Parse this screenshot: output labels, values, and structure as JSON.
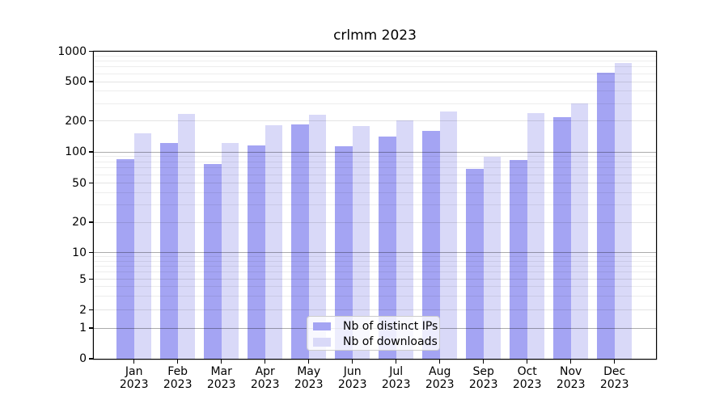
{
  "chart_data": {
    "type": "bar",
    "title": "crlmm 2023",
    "months": [
      "Jan",
      "Feb",
      "Mar",
      "Apr",
      "May",
      "Jun",
      "Jul",
      "Aug",
      "Sep",
      "Oct",
      "Nov",
      "Dec"
    ],
    "year": "2023",
    "categories": [
      "Jan 2023",
      "Feb 2023",
      "Mar 2023",
      "Apr 2023",
      "May 2023",
      "Jun 2023",
      "Jul 2023",
      "Aug 2023",
      "Sep 2023",
      "Oct 2023",
      "Nov 2023",
      "Dec 2023"
    ],
    "series": [
      {
        "name": "Nb of distinct IPs",
        "color": "#a4a4f3",
        "values": [
          85,
          121,
          77,
          115,
          186,
          114,
          140,
          159,
          68,
          84,
          217,
          610
        ]
      },
      {
        "name": "Nb of downloads",
        "color": "#d9d9f8",
        "values": [
          152,
          233,
          123,
          181,
          232,
          177,
          202,
          248,
          89,
          241,
          300,
          765
        ]
      }
    ],
    "xlabel": "",
    "ylabel": "",
    "yscale": "symlog",
    "yticks": [
      0,
      1,
      2,
      5,
      10,
      20,
      50,
      100,
      200,
      500,
      1000
    ],
    "ylim": [
      0,
      1000
    ],
    "grid": true,
    "legend_position": "lower center"
  }
}
